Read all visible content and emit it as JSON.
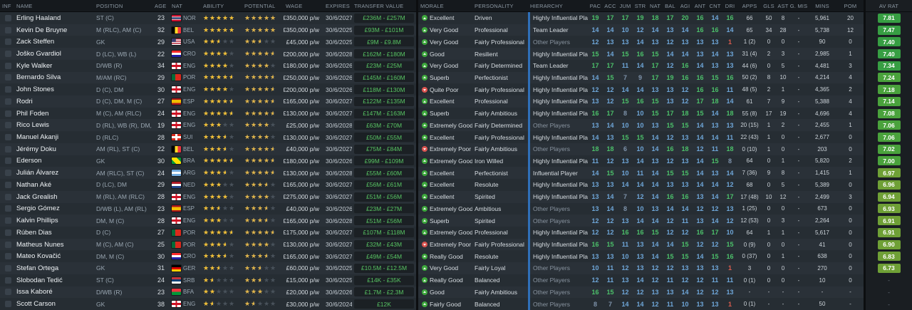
{
  "header": {
    "cols_left": [
      "INF",
      "NAME",
      "POSITION",
      "AGE",
      "NAT",
      "ABILITY",
      "POTENTIAL",
      "WAGE",
      "EXPIRES",
      "TRANSFER VALUE"
    ],
    "cols_mid": [
      "MORALE",
      "PERSONALITY",
      "HIERARCHY"
    ],
    "cols_attr": [
      "PAC",
      "ACC",
      "JUM",
      "STR",
      "NAT",
      "BAL",
      "AGI",
      "ANT",
      "CNT",
      "DRI"
    ],
    "cols_stats": [
      "APPS",
      "GLS",
      "AST",
      "G. MIS",
      "MINS",
      "POM"
    ],
    "col_avrat": "AV RAT"
  },
  "colors": {
    "value_green": "#58c563",
    "star_gold": "#f2c037",
    "morale_good": "#3da83c",
    "morale_bad": "#d9534f",
    "attr_high": "#4cc06a",
    "attr_mid": "#6ea6d8",
    "attr_low": "#7e93ab",
    "attr_poor": "#d95c4e",
    "hierarchy_bar": "#2f6fb8",
    "rating_badge": "#3f9e43"
  },
  "flags": {
    "NOR": "linear-gradient(180deg,#c8102e 30%,#fff 30%,#fff 40%,#00205b 40%,#00205b 60%,#fff 60%,#fff 70%,#c8102e 70%)",
    "BEL": "linear-gradient(90deg,#000 33%,#fdda24 33%,#fdda24 67%,#ef3340 67%)",
    "USA": "linear-gradient(#3c3b6e,#3c3b6e) left top/45% 55% no-repeat, repeating-linear-gradient(180deg,#b22234 0 1.5px,#fff 1.5px 3px)",
    "CRO": "linear-gradient(180deg,#ff2b2b 33%,#fff 33%,#fff 67%,#1f1fa8 67%)",
    "ENG": "linear-gradient(90deg,transparent 41%,#ce1124 41%,#ce1124 59%,transparent 59%),linear-gradient(180deg,transparent 33%,#ce1124 33%,#ce1124 67%,transparent 67%),linear-gradient(#fff,#fff)",
    "POR": "linear-gradient(90deg,#046a38 38%,#da291c 38%)",
    "ESP": "linear-gradient(180deg,#aa151b 25%,#f1bf00 25%,#f1bf00 75%,#aa151b 75%)",
    "SUI": "linear-gradient(90deg,transparent 40%,#fff 40%,#fff 60%,transparent 60%),linear-gradient(180deg,transparent 33%,#fff 33%,#fff 67%,transparent 67%),linear-gradient(#da291c,#da291c)",
    "BRA": "linear-gradient(45deg,#009739 28%,#ffdf00 28%,#ffdf00 72%,#009739 72%)",
    "ARG": "linear-gradient(180deg,#74acdf 33%,#fff 33%,#fff 67%,#74acdf 67%)",
    "NED": "linear-gradient(180deg,#ae1c28 33%,#fff 33%,#fff 67%,#21468b 67%)",
    "GER": "linear-gradient(180deg,#000 33%,#d00 33%,#d00 67%,#ffce00 67%)",
    "SRB": "linear-gradient(180deg,#c6363c 33%,#0c4076 33%,#0c4076 67%,#fff 67%)",
    "BFA": "linear-gradient(180deg,#ef3340 50%,#009739 50%)"
  },
  "players": [
    {
      "name": "Erling Haaland",
      "pos": "ST (C)",
      "age": "23",
      "nat": "NOR",
      "ability": 5,
      "potential": 5,
      "wage": "£350,000 p/w",
      "expires": "30/6/2027",
      "value": "£236M - £257M",
      "morale": "Excellent",
      "tone": "pos",
      "personality": "Driven",
      "hierarchy": "Highly Influential Player",
      "attrs": [
        19,
        17,
        17,
        19,
        18,
        17,
        20,
        16,
        14,
        16
      ],
      "apps": "66",
      "gls": "50",
      "ast": "8",
      "gmis": "-",
      "mins": "5,961",
      "pom": "20",
      "avrat": "7.81"
    },
    {
      "name": "Kevin De Bruyne",
      "pos": "M (RLC), AM (C)",
      "age": "32",
      "nat": "BEL",
      "ability": 5,
      "potential": 5,
      "wage": "£350,000 p/w",
      "expires": "30/6/2025",
      "value": "£93M - £101M",
      "morale": "Very Good",
      "tone": "pos",
      "personality": "Professional",
      "hierarchy": "Team Leader",
      "attrs": [
        14,
        14,
        10,
        12,
        14,
        13,
        14,
        16,
        16,
        14
      ],
      "apps": "65",
      "gls": "34",
      "ast": "28",
      "gmis": "-",
      "mins": "5,738",
      "pom": "12",
      "avrat": "7.47"
    },
    {
      "name": "Zack Steffen",
      "pos": "GK",
      "age": "29",
      "nat": "USA",
      "ability": 2.5,
      "potential": 2.5,
      "wage": "£45,000 p/w",
      "expires": "30/6/2025",
      "value": "£9M - £9.8M",
      "morale": "Very Good",
      "tone": "pos",
      "personality": "Fairly Professional",
      "hierarchy": "Other Players",
      "attrs": [
        12,
        13,
        13,
        14,
        13,
        12,
        13,
        13,
        13,
        1
      ],
      "apps": "1 (2)",
      "gls": "0",
      "ast": "0",
      "gmis": "-",
      "mins": "90",
      "pom": "0",
      "avrat": "7.40"
    },
    {
      "name": "Joško Gvardiol",
      "pos": "D (LC), WB (L)",
      "age": "22",
      "nat": "CRO",
      "ability": 4,
      "potential": 4.5,
      "wage": "£200,000 p/w",
      "expires": "30/6/2028",
      "value": "£162M - £180M",
      "morale": "Good",
      "tone": "pos",
      "personality": "Resilient",
      "hierarchy": "Highly Influential Player",
      "attrs": [
        15,
        14,
        15,
        16,
        15,
        14,
        14,
        13,
        14,
        13
      ],
      "apps": "31 (4)",
      "gls": "2",
      "ast": "3",
      "gmis": "-",
      "mins": "2,985",
      "pom": "1",
      "avrat": "7.40"
    },
    {
      "name": "Kyle Walker",
      "pos": "D/WB (R)",
      "age": "34",
      "nat": "ENG",
      "ability": 4,
      "potential": 4,
      "wage": "£180,000 p/w",
      "expires": "30/6/2026",
      "value": "£23M - £25M",
      "morale": "Very Good",
      "tone": "pos",
      "personality": "Fairly Determined",
      "hierarchy": "Team Leader",
      "attrs": [
        17,
        17,
        11,
        14,
        17,
        12,
        16,
        14,
        13,
        13
      ],
      "apps": "44 (6)",
      "gls": "0",
      "ast": "5",
      "gmis": "-",
      "mins": "4,481",
      "pom": "3",
      "avrat": "7.34"
    },
    {
      "name": "Bernardo Silva",
      "pos": "M/AM (RC)",
      "age": "29",
      "nat": "POR",
      "ability": 4.5,
      "potential": 4.5,
      "wage": "£250,000 p/w",
      "expires": "30/6/2026",
      "value": "£145M - £160M",
      "morale": "Superb",
      "tone": "pos",
      "personality": "Perfectionist",
      "hierarchy": "Highly Influential Player",
      "attrs": [
        14,
        15,
        7,
        9,
        17,
        19,
        16,
        16,
        15,
        16
      ],
      "apps": "50 (2)",
      "gls": "8",
      "ast": "10",
      "gmis": "-",
      "mins": "4,214",
      "pom": "4",
      "avrat": "7.24"
    },
    {
      "name": "John Stones",
      "pos": "D (C), DM",
      "age": "30",
      "nat": "ENG",
      "ability": 4,
      "potential": 4.5,
      "wage": "£200,000 p/w",
      "expires": "30/6/2026",
      "value": "£118M - £130M",
      "morale": "Quite Poor",
      "tone": "neg",
      "personality": "Fairly Professional",
      "hierarchy": "Highly Influential Player",
      "attrs": [
        12,
        12,
        14,
        14,
        13,
        13,
        12,
        16,
        16,
        11
      ],
      "apps": "48 (5)",
      "gls": "2",
      "ast": "1",
      "gmis": "-",
      "mins": "4,365",
      "pom": "2",
      "avrat": "7.18"
    },
    {
      "name": "Rodri",
      "pos": "D (C), DM, M (C)",
      "age": "27",
      "nat": "ESP",
      "ability": 4.5,
      "potential": 4.5,
      "wage": "£165,000 p/w",
      "expires": "30/6/2027",
      "value": "£122M - £135M",
      "morale": "Excellent",
      "tone": "pos",
      "personality": "Professional",
      "hierarchy": "Highly Influential Player",
      "attrs": [
        13,
        12,
        15,
        16,
        15,
        13,
        12,
        17,
        18,
        14
      ],
      "apps": "61",
      "gls": "7",
      "ast": "9",
      "gmis": "-",
      "mins": "5,388",
      "pom": "4",
      "avrat": "7.14"
    },
    {
      "name": "Phil Foden",
      "pos": "M (C), AM (RLC)",
      "age": "24",
      "nat": "ENG",
      "ability": 4.5,
      "potential": 4.5,
      "wage": "£130,000 p/w",
      "expires": "30/6/2027",
      "value": "£147M - £163M",
      "morale": "Superb",
      "tone": "pos",
      "personality": "Fairly Ambitious",
      "hierarchy": "Highly Influential Player",
      "attrs": [
        16,
        17,
        8,
        10,
        15,
        17,
        18,
        15,
        14,
        18
      ],
      "apps": "55 (8)",
      "gls": "17",
      "ast": "19",
      "gmis": "-",
      "mins": "4,696",
      "pom": "4",
      "avrat": "7.08"
    },
    {
      "name": "Rico Lewis",
      "pos": "D (RL), WB (R), DM, M (C)",
      "age": "19",
      "nat": "ENG",
      "ability": 3,
      "potential": 4,
      "wage": "£25,000 p/w",
      "expires": "30/6/2028",
      "value": "£63M - £70M",
      "morale": "Extremely Good",
      "tone": "pos",
      "personality": "Fairly Determined",
      "hierarchy": "Other Players",
      "attrs": [
        13,
        14,
        10,
        10,
        13,
        15,
        15,
        14,
        13,
        13
      ],
      "apps": "20 (15)",
      "gls": "1",
      "ast": "2",
      "gmis": "-",
      "mins": "2,455",
      "pom": "1",
      "avrat": "7.06"
    },
    {
      "name": "Manuel Akanji",
      "pos": "D (RLC)",
      "age": "28",
      "nat": "SUI",
      "ability": 3.5,
      "potential": 4,
      "wage": "£130,000 p/w",
      "expires": "30/6/2027",
      "value": "£50M - £55M",
      "morale": "Excellent",
      "tone": "pos",
      "personality": "Fairly Professional",
      "hierarchy": "Highly Influential Player",
      "attrs": [
        14,
        13,
        15,
        15,
        14,
        12,
        13,
        14,
        14,
        11
      ],
      "apps": "22 (43)",
      "gls": "1",
      "ast": "0",
      "gmis": "-",
      "mins": "2,677",
      "pom": "0",
      "avrat": "7.06"
    },
    {
      "name": "Jérémy Doku",
      "pos": "AM (RL), ST (C)",
      "age": "22",
      "nat": "BEL",
      "ability": 3.5,
      "potential": 4.5,
      "wage": "£40,000 p/w",
      "expires": "30/6/2027",
      "value": "£75M - £84M",
      "morale": "Extremely Poor",
      "tone": "neg",
      "personality": "Fairly Ambitious",
      "hierarchy": "Other Players",
      "attrs": [
        18,
        18,
        6,
        10,
        14,
        16,
        18,
        12,
        11,
        18
      ],
      "apps": "0 (10)",
      "gls": "1",
      "ast": "0",
      "gmis": "-",
      "mins": "203",
      "pom": "0",
      "avrat": "7.02"
    },
    {
      "name": "Ederson",
      "pos": "GK",
      "age": "30",
      "nat": "BRA",
      "ability": 4.5,
      "potential": 4.5,
      "wage": "£180,000 p/w",
      "expires": "30/6/2026",
      "value": "£99M - £109M",
      "morale": "Extremely Good",
      "tone": "pos",
      "personality": "Iron Willed",
      "hierarchy": "Highly Influential Player",
      "attrs": [
        11,
        12,
        13,
        14,
        13,
        12,
        13,
        14,
        15,
        8
      ],
      "apps": "64",
      "gls": "0",
      "ast": "1",
      "gmis": "-",
      "mins": "5,820",
      "pom": "2",
      "avrat": "7.00"
    },
    {
      "name": "Julián Álvarez",
      "pos": "AM (RLC), ST (C)",
      "age": "24",
      "nat": "ARG",
      "ability": 3.5,
      "potential": 4.5,
      "wage": "£130,000 p/w",
      "expires": "30/6/2028",
      "value": "£55M - £60M",
      "morale": "Excellent",
      "tone": "pos",
      "personality": "Perfectionist",
      "hierarchy": "Influential Player",
      "attrs": [
        14,
        15,
        10,
        11,
        14,
        15,
        15,
        14,
        13,
        14
      ],
      "apps": "7 (36)",
      "gls": "9",
      "ast": "8",
      "gmis": "-",
      "mins": "1,415",
      "pom": "1",
      "avrat": "6.97"
    },
    {
      "name": "Nathan Aké",
      "pos": "D (LC), DM",
      "age": "29",
      "nat": "NED",
      "ability": 3,
      "potential": 3.5,
      "wage": "£165,000 p/w",
      "expires": "30/6/2027",
      "value": "£56M - £61M",
      "morale": "Excellent",
      "tone": "pos",
      "personality": "Resolute",
      "hierarchy": "Highly Influential Player",
      "attrs": [
        13,
        13,
        14,
        14,
        14,
        13,
        13,
        14,
        14,
        12
      ],
      "apps": "68",
      "gls": "0",
      "ast": "5",
      "gmis": "-",
      "mins": "5,389",
      "pom": "0",
      "avrat": "6.96"
    },
    {
      "name": "Jack Grealish",
      "pos": "M (RL), AM (RLC)",
      "age": "28",
      "nat": "ENG",
      "ability": 4,
      "potential": 4,
      "wage": "£275,000 p/w",
      "expires": "30/6/2027",
      "value": "£51M - £56M",
      "morale": "Excellent",
      "tone": "pos",
      "personality": "Spirited",
      "hierarchy": "Highly Influential Player",
      "attrs": [
        13,
        14,
        7,
        12,
        14,
        16,
        16,
        13,
        14,
        17
      ],
      "apps": "17 (48)",
      "gls": "10",
      "ast": "12",
      "gmis": "-",
      "mins": "2,499",
      "pom": "3",
      "avrat": "6.94"
    },
    {
      "name": "Sergio Gómez",
      "pos": "D/WB (L), AM (RL)",
      "age": "23",
      "nat": "ESP",
      "ability": 2.5,
      "potential": 3.5,
      "wage": "£40,000 p/w",
      "expires": "30/6/2026",
      "value": "£23M - £27M",
      "morale": "Extremely Good",
      "tone": "pos",
      "personality": "Ambitious",
      "hierarchy": "Other Players",
      "attrs": [
        13,
        14,
        8,
        10,
        13,
        14,
        14,
        12,
        12,
        13
      ],
      "apps": "1 (25)",
      "gls": "0",
      "ast": "0",
      "gmis": "-",
      "mins": "673",
      "pom": "0",
      "avrat": "6.93"
    },
    {
      "name": "Kalvin Phillips",
      "pos": "DM, M (C)",
      "age": "28",
      "nat": "ENG",
      "ability": 3,
      "potential": 3.5,
      "wage": "£165,000 p/w",
      "expires": "30/6/2028",
      "value": "£51M - £56M",
      "morale": "Superb",
      "tone": "pos",
      "personality": "Spirited",
      "hierarchy": "Other Players",
      "attrs": [
        12,
        12,
        13,
        14,
        14,
        12,
        11,
        13,
        14,
        12
      ],
      "apps": "12 (53)",
      "gls": "0",
      "ast": "3",
      "gmis": "-",
      "mins": "2,264",
      "pom": "0",
      "avrat": "6.91"
    },
    {
      "name": "Rúben Dias",
      "pos": "D (C)",
      "age": "27",
      "nat": "POR",
      "ability": 4.5,
      "potential": 4.5,
      "wage": "£175,000 p/w",
      "expires": "30/6/2027",
      "value": "£107M - £118M",
      "morale": "Extremely Good",
      "tone": "pos",
      "personality": "Professional",
      "hierarchy": "Highly Influential Player",
      "attrs": [
        12,
        12,
        16,
        16,
        15,
        12,
        12,
        16,
        17,
        10
      ],
      "apps": "64",
      "gls": "1",
      "ast": "1",
      "gmis": "-",
      "mins": "5,617",
      "pom": "0",
      "avrat": "6.91"
    },
    {
      "name": "Matheus Nunes",
      "pos": "M (C), AM (C)",
      "age": "25",
      "nat": "POR",
      "ability": 3.5,
      "potential": 4,
      "wage": "£130,000 p/w",
      "expires": "30/6/2027",
      "value": "£32M - £43M",
      "morale": "Extremely Poor",
      "tone": "neg",
      "personality": "Fairly Professional",
      "hierarchy": "Highly Influential Player",
      "attrs": [
        16,
        15,
        11,
        13,
        14,
        14,
        15,
        12,
        12,
        15
      ],
      "apps": "0 (9)",
      "gls": "0",
      "ast": "0",
      "gmis": "-",
      "mins": "41",
      "pom": "0",
      "avrat": "6.90"
    },
    {
      "name": "Mateo Kovačić",
      "pos": "DM, M (C)",
      "age": "30",
      "nat": "CRO",
      "ability": 3.5,
      "potential": 3.5,
      "wage": "£165,000 p/w",
      "expires": "30/6/2027",
      "value": "£49M - £54M",
      "morale": "Really Good",
      "tone": "pos",
      "personality": "Resolute",
      "hierarchy": "Highly Influential Player",
      "attrs": [
        13,
        13,
        10,
        13,
        14,
        15,
        15,
        14,
        15,
        16
      ],
      "apps": "0 (37)",
      "gls": "0",
      "ast": "1",
      "gmis": "-",
      "mins": "638",
      "pom": "0",
      "avrat": "6.83"
    },
    {
      "name": "Stefan Ortega",
      "pos": "GK",
      "age": "31",
      "nat": "GER",
      "ability": 2.5,
      "potential": 2.5,
      "wage": "£60,000 p/w",
      "expires": "30/6/2025",
      "value": "£10.5M - £12.5M",
      "morale": "Very Good",
      "tone": "pos",
      "personality": "Fairly Loyal",
      "hierarchy": "Other Players",
      "attrs": [
        10,
        11,
        12,
        13,
        12,
        12,
        13,
        13,
        13,
        1
      ],
      "apps": "3",
      "gls": "0",
      "ast": "0",
      "gmis": "-",
      "mins": "270",
      "pom": "0",
      "avrat": "6.73"
    },
    {
      "name": "Slobodan Tedić",
      "pos": "ST (C)",
      "age": "24",
      "nat": "SRB",
      "ability": 1.5,
      "potential": 2.5,
      "wage": "£15,000 p/w",
      "expires": "30/6/2025",
      "value": "£14K - £35K",
      "morale": "Really Good",
      "tone": "pos",
      "personality": "Balanced",
      "hierarchy": "Other Players",
      "attrs": [
        12,
        11,
        13,
        14,
        12,
        11,
        12,
        12,
        11,
        11
      ],
      "apps": "0 (1)",
      "gls": "0",
      "ast": "0",
      "gmis": "-",
      "mins": "10",
      "pom": "0",
      "avrat": "-"
    },
    {
      "name": "Issa Kaboré",
      "pos": "D/WB (R)",
      "age": "23",
      "nat": "BFA",
      "ability": 2,
      "potential": 3,
      "wage": "£20,000 p/w",
      "expires": "30/6/2026",
      "value": "£1.7M - £2.3M",
      "morale": "Good",
      "tone": "pos",
      "personality": "Fairly Ambitious",
      "hierarchy": "Other Players",
      "attrs": [
        16,
        15,
        12,
        12,
        13,
        13,
        14,
        12,
        12,
        13
      ],
      "apps": "-",
      "gls": "-",
      "ast": "-",
      "gmis": "-",
      "mins": "-",
      "pom": "-",
      "avrat": "-"
    },
    {
      "name": "Scott Carson",
      "pos": "GK",
      "age": "38",
      "nat": "ENG",
      "ability": 1.5,
      "potential": 1.5,
      "wage": "£30,000 p/w",
      "expires": "30/6/2024",
      "value": "£12K",
      "morale": "Fairly Good",
      "tone": "pos",
      "personality": "Balanced",
      "hierarchy": "Other Players",
      "attrs": [
        8,
        7,
        14,
        14,
        12,
        11,
        10,
        13,
        13,
        1
      ],
      "apps": "0 (1)",
      "gls": "-",
      "ast": "-",
      "gmis": "-",
      "mins": "50",
      "pom": "-",
      "avrat": "-"
    }
  ]
}
